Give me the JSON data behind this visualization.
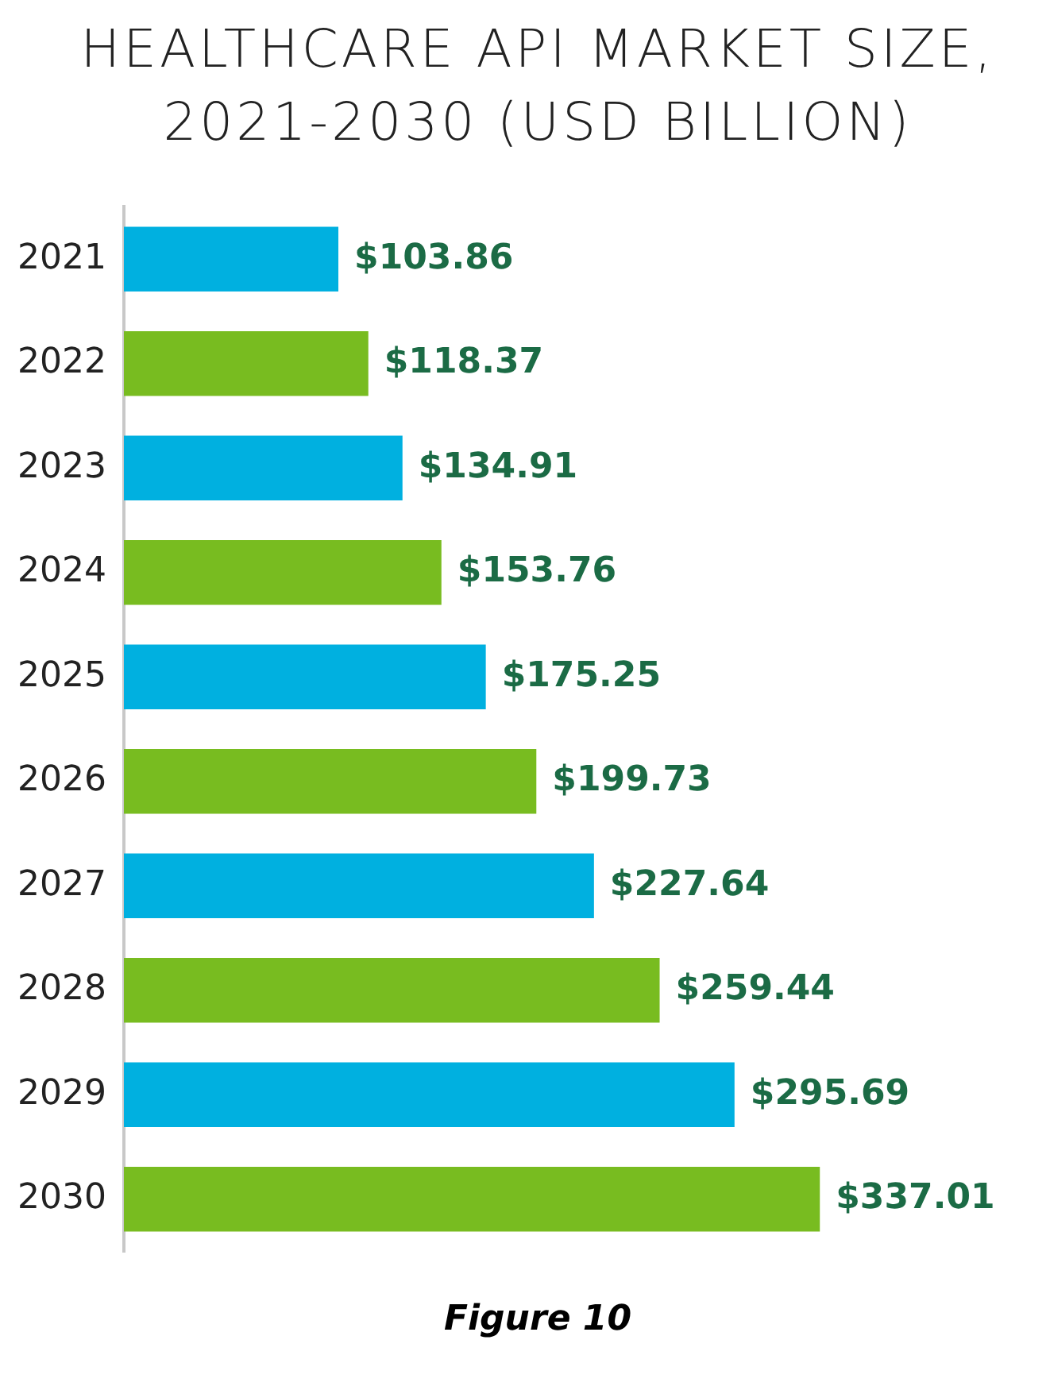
{
  "chart_data": {
    "type": "bar",
    "orientation": "horizontal",
    "title": "HEALTHCARE API MARKET SIZE, 2021-2030 (USD BILLION)",
    "categories": [
      "2021",
      "2022",
      "2023",
      "2024",
      "2025",
      "2026",
      "2027",
      "2028",
      "2029",
      "2030"
    ],
    "values": [
      103.86,
      118.37,
      134.91,
      153.76,
      175.25,
      199.73,
      227.64,
      259.44,
      295.69,
      337.01
    ],
    "value_labels": [
      "$103.86",
      "$118.37",
      "$134.91",
      "$153.76",
      "$175.25",
      "$199.73",
      "$227.64",
      "$259.44",
      "$295.69",
      "$337.01"
    ],
    "colors": [
      "#00b0e0",
      "#78bc20",
      "#00b0e0",
      "#78bc20",
      "#00b0e0",
      "#78bc20",
      "#00b0e0",
      "#78bc20",
      "#00b0e0",
      "#78bc20"
    ],
    "tick_labels": "y",
    "grid": false,
    "legend": false,
    "annotations": [
      "Figure 10"
    ]
  }
}
